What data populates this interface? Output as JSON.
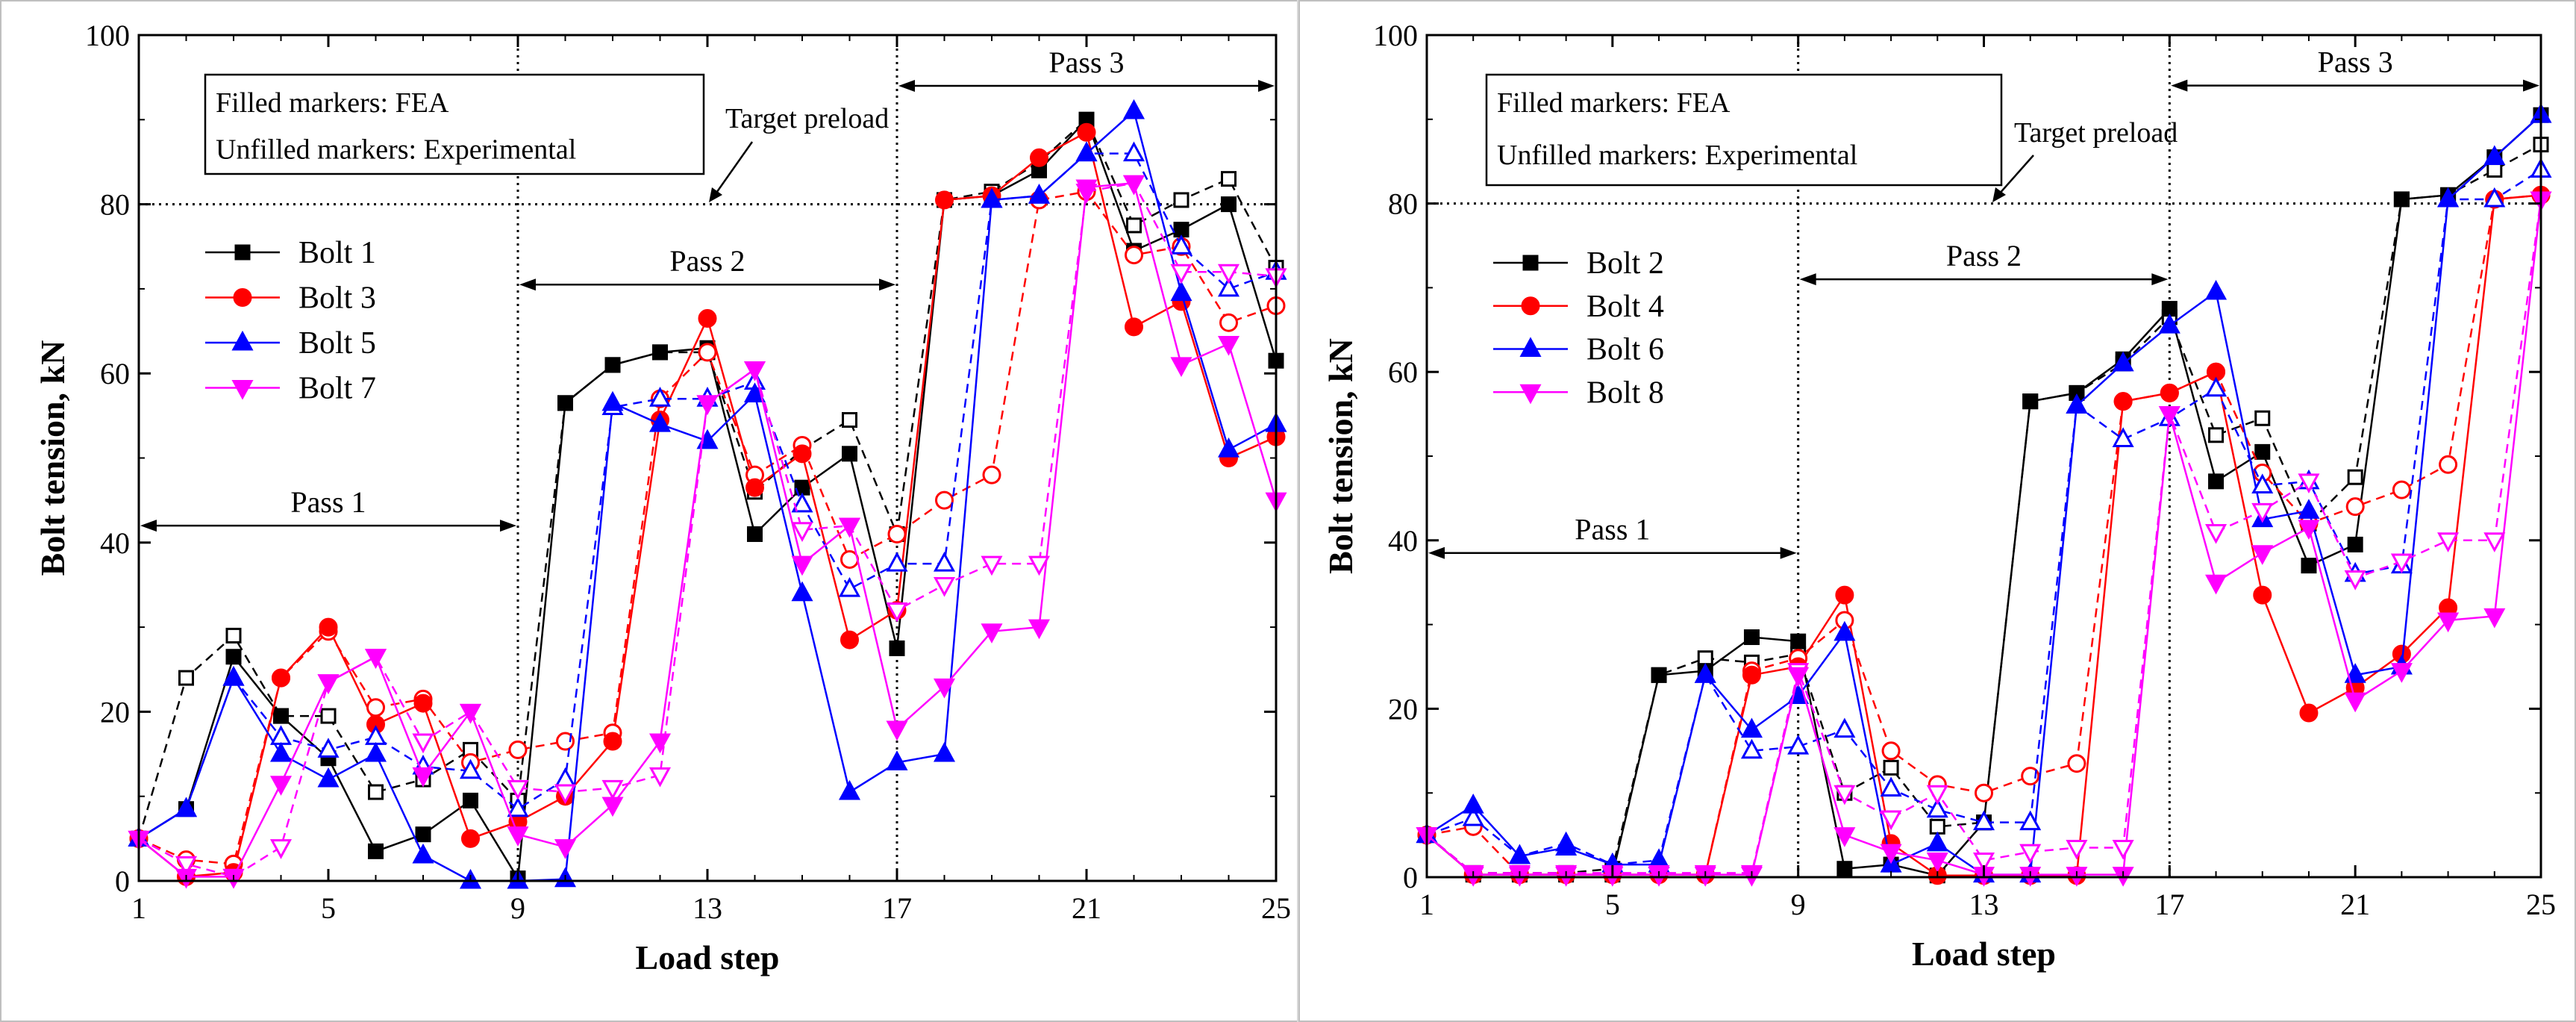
{
  "chart_data": [
    {
      "type": "line",
      "title": "",
      "xlabel": "Load step",
      "ylabel": "Bolt tension, kN",
      "xlim": [
        1,
        25
      ],
      "ylim": [
        0,
        100
      ],
      "xticks": [
        "1",
        "5",
        "9",
        "13",
        "17",
        "21",
        "25"
      ],
      "yticks": [
        "0",
        "20",
        "40",
        "60",
        "80",
        "100"
      ],
      "note_lines": [
        "Filled markers: FEA",
        "Unfilled markers: Experimental"
      ],
      "target_label": "Target preload",
      "target_value": 80,
      "passes": [
        {
          "label": "Pass 1",
          "from": 1,
          "to": 9,
          "y": 42
        },
        {
          "label": "Pass 2",
          "from": 9,
          "to": 17,
          "y": 70.5
        },
        {
          "label": "Pass 3",
          "from": 17,
          "to": 25,
          "y": 94
        }
      ],
      "x": [
        1,
        2,
        3,
        4,
        5,
        6,
        7,
        8,
        9,
        10,
        11,
        12,
        13,
        14,
        15,
        16,
        17,
        18,
        19,
        20,
        21,
        22,
        23,
        24,
        25
      ],
      "series": [
        {
          "name": "Bolt 1",
          "color": "#000000",
          "marker": "square",
          "fea": [
            5,
            8.5,
            26.5,
            19.5,
            14.5,
            3.5,
            5.5,
            9.5,
            0.3,
            56.5,
            61,
            62.5,
            63,
            41,
            46.5,
            50.5,
            27.5,
            80.5,
            81,
            84,
            90,
            74.5,
            77,
            80,
            61.5
          ],
          "exp": [
            5,
            24,
            29,
            19.5,
            19.5,
            10.5,
            12,
            15.5,
            9.5,
            56.5,
            61,
            62.5,
            62.5,
            46,
            51,
            54.5,
            41,
            80.5,
            81.5,
            85,
            90,
            77.5,
            80.5,
            83,
            72.5
          ]
        },
        {
          "name": "Bolt 3",
          "color": "#ff0000",
          "marker": "circle",
          "fea": [
            5,
            0.5,
            1,
            24,
            30,
            18.5,
            21,
            5,
            7,
            10,
            16.5,
            54.5,
            66.5,
            46.5,
            50.5,
            28.5,
            32,
            80.5,
            81,
            85.5,
            88.5,
            65.5,
            68.5,
            50,
            52.5
          ],
          "exp": [
            5,
            2.5,
            2,
            24,
            29.5,
            20.5,
            21.5,
            14,
            15.5,
            16.5,
            17.5,
            57,
            62.5,
            48,
            51.5,
            38,
            41,
            45,
            48,
            80.5,
            81.5,
            74,
            75,
            66,
            68
          ]
        },
        {
          "name": "Bolt 5",
          "color": "#0000ff",
          "marker": "triangle-up",
          "fea": [
            5,
            8.5,
            24,
            15,
            12,
            15,
            3,
            0,
            0,
            0.2,
            56.5,
            54,
            52,
            57.5,
            34,
            10.5,
            14,
            15,
            80.5,
            81,
            86,
            91,
            69.5,
            51,
            54
          ],
          "exp": [
            5,
            8.5,
            24,
            17,
            15.5,
            17,
            13.5,
            13,
            8.5,
            12,
            56,
            57,
            57,
            59,
            44.5,
            34.5,
            37.5,
            37.5,
            80.5,
            81,
            86,
            86,
            75,
            70,
            72
          ]
        },
        {
          "name": "Bolt 7",
          "color": "#ff00ff",
          "marker": "triangle-down",
          "fea": [
            5,
            0.5,
            0.5,
            11.5,
            23.5,
            26.5,
            12.5,
            20,
            5.5,
            4,
            9,
            16.5,
            56.5,
            60.5,
            37.5,
            42,
            18,
            23,
            29.5,
            30,
            82,
            82.5,
            61,
            63.5,
            45
          ],
          "exp": [
            5,
            2,
            0.5,
            4,
            23.5,
            26.5,
            16.5,
            20,
            11,
            10.5,
            11,
            12.5,
            56.5,
            60.5,
            41.5,
            42,
            32,
            35,
            37.5,
            37.5,
            81.5,
            82.5,
            72,
            72,
            71.5
          ]
        }
      ]
    },
    {
      "type": "line",
      "title": "",
      "xlabel": "Load step",
      "ylabel": "Bolt tension, kN",
      "xlim": [
        1,
        25
      ],
      "ylim": [
        0,
        100
      ],
      "xticks": [
        "1",
        "5",
        "9",
        "13",
        "17",
        "21",
        "25"
      ],
      "yticks": [
        "0",
        "20",
        "40",
        "60",
        "80",
        "100"
      ],
      "note_lines": [
        "Filled markers: FEA",
        "Unfilled markers: Experimental"
      ],
      "target_label": "Target preload",
      "target_value": 80,
      "passes": [
        {
          "label": "Pass 1",
          "from": 1,
          "to": 9,
          "y": 38.5
        },
        {
          "label": "Pass 2",
          "from": 9,
          "to": 17,
          "y": 71
        },
        {
          "label": "Pass 3",
          "from": 17,
          "to": 25,
          "y": 94
        }
      ],
      "x": [
        1,
        2,
        3,
        4,
        5,
        6,
        7,
        8,
        9,
        10,
        11,
        12,
        13,
        14,
        15,
        16,
        17,
        18,
        19,
        20,
        21,
        22,
        23,
        24,
        25
      ],
      "series": [
        {
          "name": "Bolt 2",
          "color": "#000000",
          "marker": "square",
          "fea": [
            5,
            0.3,
            0.3,
            0.3,
            0.3,
            24,
            24.5,
            28.5,
            28,
            1,
            1.5,
            0.2,
            6.5,
            56.5,
            57.5,
            61.5,
            67.5,
            47,
            50.5,
            37,
            39.5,
            80.5,
            81,
            85.5,
            90.5
          ],
          "exp": [
            5,
            0.5,
            0.5,
            0.5,
            1,
            24,
            26,
            25.5,
            26.5,
            10,
            13,
            6,
            6.5,
            56.5,
            57.5,
            61,
            66.5,
            52.5,
            54.5,
            42,
            47.5,
            80.5,
            81,
            84,
            87
          ]
        },
        {
          "name": "Bolt 4",
          "color": "#ff0000",
          "marker": "circle",
          "fea": [
            5,
            0.3,
            0.3,
            0.3,
            0.3,
            0.3,
            0.3,
            24,
            25,
            33.5,
            4,
            0.2,
            0.2,
            0.2,
            0.2,
            56.5,
            57.5,
            60,
            33.5,
            19.5,
            22.5,
            26.5,
            32,
            80.5,
            81
          ],
          "exp": [
            5,
            6,
            0.3,
            0.3,
            0.3,
            0.3,
            0.3,
            24.5,
            26,
            30.5,
            15,
            11,
            10,
            12,
            13.5,
            56.5,
            57.5,
            60,
            48,
            42,
            44,
            46,
            49,
            80.5,
            81
          ]
        },
        {
          "name": "Bolt 6",
          "color": "#0000ff",
          "marker": "triangle-up",
          "fea": [
            5,
            8.5,
            2.5,
            3.5,
            1.5,
            1.5,
            24,
            17.5,
            21.5,
            29,
            1.5,
            4,
            0.3,
            0.3,
            56,
            61,
            65.5,
            69.5,
            42.5,
            43.5,
            24,
            25,
            80.5,
            85.5,
            90.5
          ],
          "exp": [
            5,
            7,
            2.5,
            4,
            1.5,
            2,
            24,
            15,
            15.5,
            17.5,
            10.5,
            8,
            6.5,
            6.5,
            56,
            52,
            54.5,
            58,
            46.5,
            47,
            36,
            37,
            80.5,
            80.5,
            84
          ]
        },
        {
          "name": "Bolt 8",
          "color": "#ff00ff",
          "marker": "triangle-down",
          "fea": [
            5,
            0.3,
            0.3,
            0.3,
            0.3,
            0.3,
            0.3,
            0.3,
            24,
            5,
            3,
            2,
            0.3,
            0.3,
            0.3,
            0.3,
            55,
            35,
            38.5,
            41.5,
            21,
            24.5,
            30.5,
            31,
            80.5
          ],
          "exp": [
            5,
            0.5,
            0.5,
            0.5,
            0.5,
            0.5,
            0.5,
            0.5,
            24.5,
            10,
            7,
            10,
            2,
            3,
            3.5,
            3.5,
            55,
            41,
            43.5,
            47,
            35.5,
            37.5,
            40,
            40,
            80.5
          ]
        }
      ]
    }
  ]
}
